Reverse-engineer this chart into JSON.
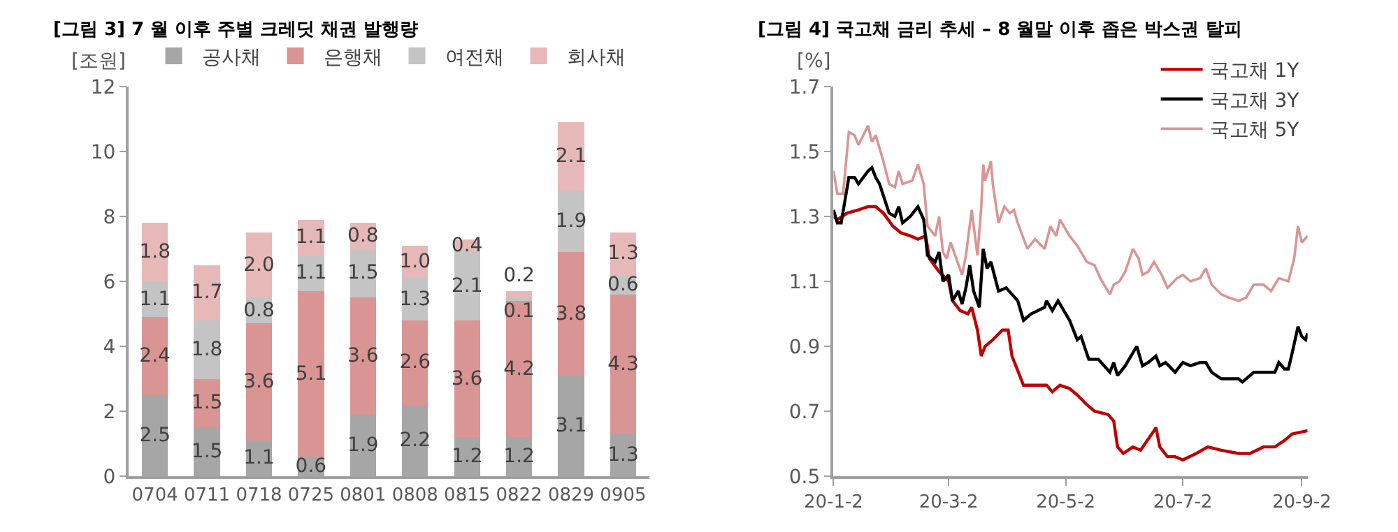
{
  "chart_data": [
    {
      "type": "bar",
      "title": "[그림 3] 7 월 이후 주별 크레딧 채권 발행량",
      "ylabel": "[조원]",
      "stacked": true,
      "legend": "top",
      "grid": false,
      "categories": [
        "0704",
        "0711",
        "0718",
        "0725",
        "0801",
        "0808",
        "0815",
        "0822",
        "0829",
        "0905"
      ],
      "ylim": [
        0,
        12
      ],
      "yticks": [
        0,
        2,
        4,
        6,
        8,
        10,
        12
      ],
      "series": [
        {
          "name": "공사채",
          "color": "#a6a6a6",
          "values": [
            2.5,
            1.5,
            1.1,
            0.6,
            1.9,
            2.2,
            1.2,
            1.2,
            3.1,
            1.3
          ],
          "value_labels": [
            "2.5",
            "1.5",
            "1.1",
            "0.6",
            "1.9",
            "2.2",
            "1.2",
            "1.2",
            "3.1",
            "1.3"
          ]
        },
        {
          "name": "은행채",
          "color": "#d99594",
          "values": [
            2.4,
            1.5,
            3.6,
            5.1,
            3.6,
            2.6,
            3.6,
            4.2,
            3.8,
            4.3
          ],
          "value_labels": [
            "2.4",
            "1.5",
            "3.6",
            "5.1",
            "3.6",
            "2.6",
            "3.6",
            "4.2",
            "3.8",
            "4.3"
          ]
        },
        {
          "name": "여전채",
          "color": "#c4c4c4",
          "values": [
            1.1,
            1.8,
            0.8,
            1.1,
            1.5,
            1.3,
            2.1,
            0.1,
            1.9,
            0.6
          ],
          "value_labels": [
            "1.1",
            "1.8",
            "0.8",
            "1.1",
            "1.5",
            "1.3",
            "2.1",
            "0.1",
            "1.9",
            "0.6"
          ]
        },
        {
          "name": "회사채",
          "color": "#e6b9b8",
          "values": [
            1.8,
            1.7,
            2.0,
            1.1,
            0.8,
            1.0,
            0.4,
            0.2,
            2.1,
            1.3
          ],
          "value_labels": [
            "1.8",
            "1.7",
            "2.0",
            "1.1",
            "0.8",
            "1.0",
            "0.4",
            "0.2",
            "2.1",
            "1.3"
          ]
        }
      ]
    },
    {
      "type": "line",
      "title": "[그림 4] 국고채 금리 추세 – 8 월말 이후 좁은 박스권 탈피",
      "ylabel": "[%]",
      "legend": "top right",
      "grid": false,
      "marker": "none",
      "line_style": "solid",
      "xlim": [
        "--01-02",
        "--09-05"
      ],
      "xticks": [
        {
          "value": "--01-02",
          "label": "20-1-2"
        },
        {
          "value": "--03-02",
          "label": "20-3-2"
        },
        {
          "value": "--05-02",
          "label": "20-5-2"
        },
        {
          "value": "--07-02",
          "label": "20-7-2"
        },
        {
          "value": "--09-02",
          "label": "20-9-2"
        }
      ],
      "ylim": [
        0.5,
        1.7
      ],
      "yticks": [
        0.5,
        0.7,
        0.9,
        1.1,
        1.3,
        1.5,
        1.7
      ],
      "series": [
        {
          "name": "국고채 1Y",
          "color": "#c00000",
          "x": [
            "--01-02",
            "--01-04",
            "--01-09",
            "--01-15",
            "--01-20",
            "--01-24",
            "--01-28",
            "--02-02",
            "--02-06",
            "--02-11",
            "--02-15",
            "--02-19",
            "--02-21",
            "--02-26",
            "--03-02",
            "--03-04",
            "--03-08",
            "--03-12",
            "--03-14",
            "--03-17",
            "--03-19",
            "--03-21",
            "--03-25",
            "--03-30",
            "--04-02",
            "--04-04",
            "--04-10",
            "--04-16",
            "--04-22",
            "--04-25",
            "--04-29",
            "--05-04",
            "--05-08",
            "--05-13",
            "--05-17",
            "--05-24",
            "--05-27",
            "--05-29",
            "--06-01",
            "--06-06",
            "--06-10",
            "--06-17",
            "--06-18",
            "--06-20",
            "--06-24",
            "--06-28",
            "--07-02",
            "--07-09",
            "--07-15",
            "--07-22",
            "--07-31",
            "--08-06",
            "--08-13",
            "--08-19",
            "--08-24",
            "--08-28",
            "--09-05"
          ],
          "values": [
            1.3,
            1.29,
            1.31,
            1.32,
            1.33,
            1.33,
            1.31,
            1.27,
            1.25,
            1.24,
            1.23,
            1.24,
            1.17,
            1.13,
            1.1,
            1.04,
            1.01,
            1.0,
            1.02,
            0.95,
            0.87,
            0.9,
            0.92,
            0.95,
            0.95,
            0.87,
            0.78,
            0.78,
            0.78,
            0.76,
            0.78,
            0.77,
            0.75,
            0.72,
            0.7,
            0.69,
            0.67,
            0.59,
            0.57,
            0.59,
            0.58,
            0.64,
            0.65,
            0.59,
            0.56,
            0.56,
            0.55,
            0.57,
            0.59,
            0.58,
            0.57,
            0.57,
            0.59,
            0.59,
            0.61,
            0.63,
            0.64
          ]
        },
        {
          "name": "국고채 3Y",
          "color": "#000000",
          "x": [
            "--01-02",
            "--01-04",
            "--01-06",
            "--01-10",
            "--01-13",
            "--01-15",
            "--01-20",
            "--01-22",
            "--01-24",
            "--01-26",
            "--01-31",
            "--02-03",
            "--02-05",
            "--02-07",
            "--02-11",
            "--02-15",
            "--02-18",
            "--02-20",
            "--02-24",
            "--02-26",
            "--02-28",
            "--03-02",
            "--03-04",
            "--03-07",
            "--03-09",
            "--03-11",
            "--03-13",
            "--03-15",
            "--03-18",
            "--03-20",
            "--03-22",
            "--03-24",
            "--03-28",
            "--04-01",
            "--04-04",
            "--04-07",
            "--04-10",
            "--04-14",
            "--04-21",
            "--04-22",
            "--04-25",
            "--04-28",
            "--05-04",
            "--05-08",
            "--05-10",
            "--05-14",
            "--05-19",
            "--05-25",
            "--05-27",
            "--05-29",
            "--06-02",
            "--06-06",
            "--06-08",
            "--06-11",
            "--06-14",
            "--06-18",
            "--06-20",
            "--06-23",
            "--06-28",
            "--07-02",
            "--07-06",
            "--07-11",
            "--07-14",
            "--07-17",
            "--07-22",
            "--07-26",
            "--07-31",
            "--08-02",
            "--08-08",
            "--08-15",
            "--08-19",
            "--08-21",
            "--08-24",
            "--08-26",
            "--08-28",
            "--08-31",
            "--09-02",
            "--09-04",
            "--09-05"
          ],
          "values": [
            1.32,
            1.28,
            1.28,
            1.42,
            1.42,
            1.4,
            1.44,
            1.45,
            1.42,
            1.4,
            1.31,
            1.3,
            1.33,
            1.28,
            1.3,
            1.33,
            1.29,
            1.18,
            1.16,
            1.19,
            1.1,
            1.12,
            1.04,
            1.07,
            1.03,
            1.08,
            1.15,
            1.07,
            1.02,
            1.2,
            1.14,
            1.16,
            1.07,
            1.08,
            1.06,
            1.04,
            0.98,
            1.0,
            1.02,
            1.04,
            1.01,
            1.04,
            0.98,
            0.92,
            0.93,
            0.86,
            0.86,
            0.82,
            0.85,
            0.81,
            0.84,
            0.88,
            0.9,
            0.84,
            0.85,
            0.87,
            0.84,
            0.85,
            0.82,
            0.85,
            0.84,
            0.85,
            0.85,
            0.82,
            0.8,
            0.8,
            0.8,
            0.79,
            0.82,
            0.82,
            0.82,
            0.85,
            0.83,
            0.83,
            0.88,
            0.96,
            0.93,
            0.92,
            0.94
          ]
        },
        {
          "name": "국고채 5Y",
          "color": "#d99594",
          "x": [
            "--01-02",
            "--01-04",
            "--01-07",
            "--01-10",
            "--01-13",
            "--01-15",
            "--01-20",
            "--01-22",
            "--01-24",
            "--01-28",
            "--01-31",
            "--02-03",
            "--02-05",
            "--02-07",
            "--02-12",
            "--02-15",
            "--02-18",
            "--02-20",
            "--02-24",
            "--02-26",
            "--02-28",
            "--03-01",
            "--03-03",
            "--03-06",
            "--03-09",
            "--03-11",
            "--03-14",
            "--03-17",
            "--03-19",
            "--03-20",
            "--03-21",
            "--03-24",
            "--03-25",
            "--03-28",
            "--03-31",
            "--04-03",
            "--04-05",
            "--04-07",
            "--04-12",
            "--04-16",
            "--04-21",
            "--04-24",
            "--04-27",
            "--04-29",
            "--05-04",
            "--05-08",
            "--05-10",
            "--05-13",
            "--05-17",
            "--05-20",
            "--05-25",
            "--05-27",
            "--05-30",
            "--06-02",
            "--06-06",
            "--06-09",
            "--06-11",
            "--06-14",
            "--06-17",
            "--06-21",
            "--06-24",
            "--06-29",
            "--07-02",
            "--07-06",
            "--07-11",
            "--07-14",
            "--07-17",
            "--07-22",
            "--07-26",
            "--07-31",
            "--08-04",
            "--08-08",
            "--08-13",
            "--08-17",
            "--08-21",
            "--08-26",
            "--08-29",
            "--08-31",
            "--09-02",
            "--09-05"
          ],
          "values": [
            1.44,
            1.37,
            1.37,
            1.56,
            1.55,
            1.52,
            1.58,
            1.53,
            1.55,
            1.47,
            1.4,
            1.39,
            1.44,
            1.4,
            1.41,
            1.46,
            1.4,
            1.27,
            1.24,
            1.3,
            1.19,
            1.17,
            1.22,
            1.17,
            1.12,
            1.18,
            1.32,
            1.18,
            1.33,
            1.46,
            1.41,
            1.47,
            1.4,
            1.28,
            1.33,
            1.31,
            1.32,
            1.28,
            1.2,
            1.23,
            1.2,
            1.27,
            1.24,
            1.29,
            1.24,
            1.21,
            1.19,
            1.16,
            1.15,
            1.11,
            1.06,
            1.09,
            1.1,
            1.13,
            1.2,
            1.17,
            1.12,
            1.13,
            1.16,
            1.12,
            1.08,
            1.11,
            1.12,
            1.1,
            1.11,
            1.14,
            1.09,
            1.06,
            1.05,
            1.04,
            1.05,
            1.09,
            1.09,
            1.07,
            1.11,
            1.1,
            1.17,
            1.27,
            1.22,
            1.24
          ]
        }
      ]
    }
  ]
}
